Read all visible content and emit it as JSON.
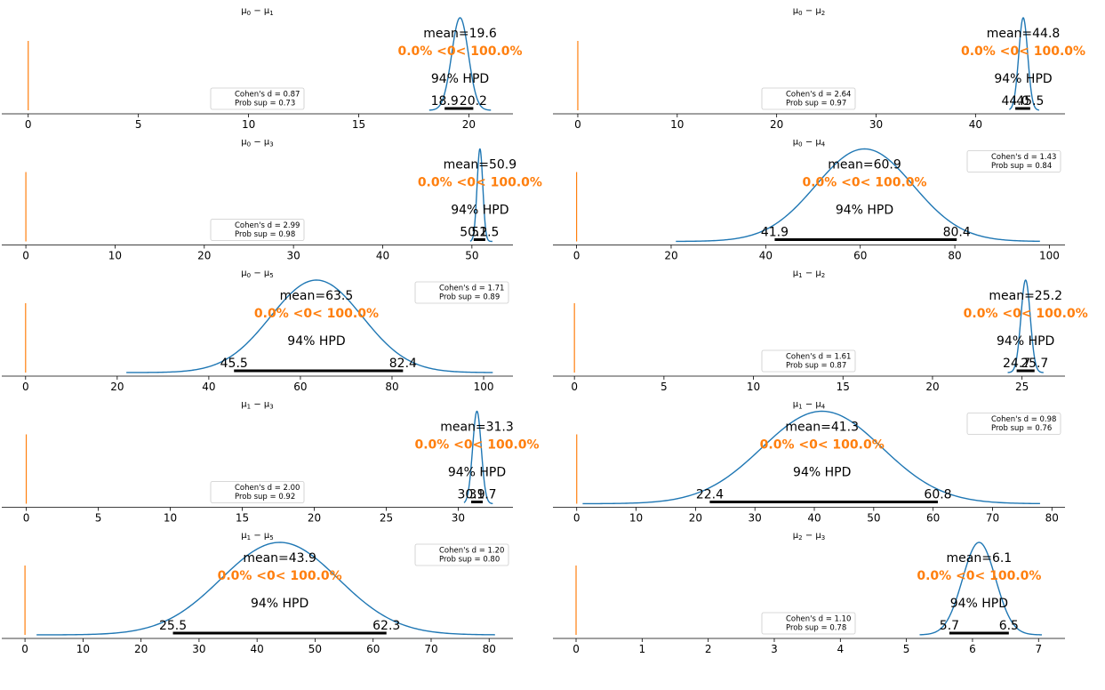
{
  "colors": {
    "kde": "#1f77b4",
    "ref": "#ff7f0e",
    "axis": "#000000"
  },
  "hpd_label": "94% HPD",
  "chart_data": [
    {
      "type": "line",
      "title": "μ0 − μ1",
      "xlim": [
        -1.2,
        22
      ],
      "ticks": [
        0,
        5,
        10,
        15,
        20
      ],
      "kde": {
        "mean": 19.6,
        "sd": 0.38,
        "min": 18.2,
        "max": 21.0
      },
      "mean_label": "mean=19.6",
      "ref_label": "0.0% <0< 100.0%",
      "hpd": [
        18.9,
        20.2
      ],
      "hpd_labels": [
        "18.9",
        "20.2"
      ],
      "cohens_d": "Cohen's d = 0.87",
      "prob_sup": "Prob sup = 0.73",
      "legend_loc": "lower-center"
    },
    {
      "type": "line",
      "title": "μ0 − μ2",
      "xlim": [
        -2.5,
        49
      ],
      "ticks": [
        0,
        10,
        20,
        30,
        40
      ],
      "kde": {
        "mean": 44.8,
        "sd": 0.45,
        "min": 43.4,
        "max": 46.4
      },
      "mean_label": "mean=44.8",
      "ref_label": "0.0% <0< 100.0%",
      "hpd": [
        44.0,
        45.5
      ],
      "hpd_labels": [
        "44.0",
        "45.5"
      ],
      "cohens_d": "Cohen's d = 2.64",
      "prob_sup": "Prob sup = 0.97",
      "legend_loc": "lower-center"
    },
    {
      "type": "line",
      "title": "μ0 − μ3",
      "xlim": [
        -2.7,
        54.6
      ],
      "ticks": [
        0,
        10,
        20,
        30,
        40,
        50
      ],
      "kde": {
        "mean": 50.9,
        "sd": 0.32,
        "min": 49.8,
        "max": 52.3
      },
      "mean_label": "mean=50.9",
      "ref_label": "0.0% <0< 100.0%",
      "hpd": [
        50.2,
        51.5
      ],
      "hpd_labels": [
        "50.2",
        "51.5"
      ],
      "cohens_d": "Cohen's d = 2.99",
      "prob_sup": "Prob sup = 0.98",
      "legend_loc": "lower-center"
    },
    {
      "type": "line",
      "title": "μ0 − μ4",
      "xlim": [
        -5,
        103.3
      ],
      "ticks": [
        0,
        20,
        40,
        60,
        80,
        100
      ],
      "kde": {
        "mean": 60.9,
        "sd": 10.3,
        "min": 21.0,
        "max": 98.0
      },
      "mean_label": "mean=60.9",
      "ref_label": "0.0% <0< 100.0%",
      "hpd": [
        41.9,
        80.4
      ],
      "hpd_labels": [
        "41.9",
        "80.4"
      ],
      "cohens_d": "Cohen's d = 1.43",
      "prob_sup": "Prob sup = 0.84",
      "legend_loc": "upper-right"
    },
    {
      "type": "line",
      "title": "μ0 − μ5",
      "xlim": [
        -5.2,
        106.4
      ],
      "ticks": [
        0,
        20,
        40,
        60,
        80,
        100
      ],
      "kde": {
        "mean": 63.5,
        "sd": 10.0,
        "min": 22.0,
        "max": 102.0
      },
      "mean_label": "mean=63.5",
      "ref_label": "0.0% <0< 100.0%",
      "hpd": [
        45.5,
        82.4
      ],
      "hpd_labels": [
        "45.5",
        "82.4"
      ],
      "cohens_d": "Cohen's d = 1.71",
      "prob_sup": "Prob sup = 0.89",
      "legend_loc": "upper-right"
    },
    {
      "type": "line",
      "title": "μ1 − μ2",
      "xlim": [
        -1.2,
        27.4
      ],
      "ticks": [
        0,
        5,
        10,
        15,
        20,
        25
      ],
      "kde": {
        "mean": 25.2,
        "sd": 0.26,
        "min": 24.2,
        "max": 26.2
      },
      "mean_label": "mean=25.2",
      "ref_label": "0.0% <0< 100.0%",
      "hpd": [
        24.7,
        25.7
      ],
      "hpd_labels": [
        "24.7",
        "25.7"
      ],
      "cohens_d": "Cohen's d = 1.61",
      "prob_sup": "Prob sup = 0.87",
      "legend_loc": "lower-center"
    },
    {
      "type": "line",
      "title": "μ1 − μ3",
      "xlim": [
        -1.7,
        33.8
      ],
      "ticks": [
        0,
        5,
        10,
        15,
        20,
        25,
        30
      ],
      "kde": {
        "mean": 31.3,
        "sd": 0.3,
        "min": 30.4,
        "max": 32.4
      },
      "mean_label": "mean=31.3",
      "ref_label": "0.0% <0< 100.0%",
      "hpd": [
        30.9,
        31.7
      ],
      "hpd_labels": [
        "30.9",
        "31.7"
      ],
      "cohens_d": "Cohen's d = 2.00",
      "prob_sup": "Prob sup = 0.92",
      "legend_loc": "lower-center"
    },
    {
      "type": "line",
      "title": "μ1 − μ4",
      "xlim": [
        -4,
        82.2
      ],
      "ticks": [
        0,
        10,
        20,
        30,
        40,
        50,
        60,
        70,
        80
      ],
      "kde": {
        "mean": 41.3,
        "sd": 10.1,
        "min": 1.0,
        "max": 78.0
      },
      "mean_label": "mean=41.3",
      "ref_label": "0.0% <0< 100.0%",
      "hpd": [
        22.4,
        60.8
      ],
      "hpd_labels": [
        "22.4",
        "60.8"
      ],
      "cohens_d": "Cohen's d = 0.98",
      "prob_sup": "Prob sup = 0.76",
      "legend_loc": "upper-right"
    },
    {
      "type": "line",
      "title": "μ1 − μ5",
      "xlim": [
        -4,
        84.1
      ],
      "ticks": [
        0,
        10,
        20,
        30,
        40,
        50,
        60,
        70,
        80
      ],
      "kde": {
        "mean": 43.9,
        "sd": 10.1,
        "min": 2.0,
        "max": 81.0
      },
      "mean_label": "mean=43.9",
      "ref_label": "0.0% <0< 100.0%",
      "hpd": [
        25.5,
        62.3
      ],
      "hpd_labels": [
        "25.5",
        "62.3"
      ],
      "cohens_d": "Cohen's d = 1.20",
      "prob_sup": "Prob sup = 0.80",
      "legend_loc": "upper-right"
    },
    {
      "type": "line",
      "title": "μ2 − μ3",
      "xlim": [
        -0.35,
        7.4
      ],
      "ticks": [
        0,
        1,
        2,
        3,
        4,
        5,
        6,
        7
      ],
      "kde": {
        "mean": 6.1,
        "sd": 0.25,
        "min": 5.2,
        "max": 7.05
      },
      "mean_label": "mean=6.1",
      "ref_label": "0.0% <0< 100.0%",
      "hpd": [
        5.65,
        6.55
      ],
      "hpd_labels": [
        "5.7",
        "6.5"
      ],
      "cohens_d": "Cohen's d = 1.10",
      "prob_sup": "Prob sup = 0.78",
      "legend_loc": "lower-center"
    }
  ]
}
